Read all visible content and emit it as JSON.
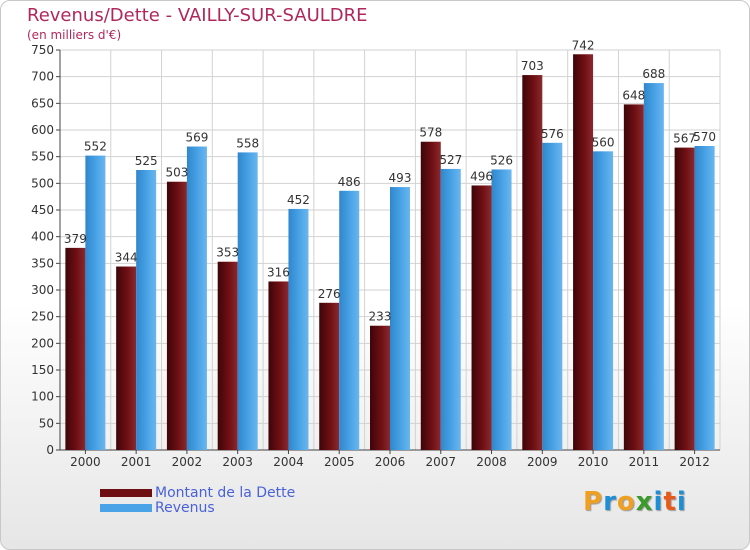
{
  "header": {
    "title": "Revenus/Dette - VAILLY-SUR-SAULDRE",
    "subtitle": "(en milliers d'€)"
  },
  "legend": {
    "items": [
      {
        "label": "Montant de la Dette",
        "color": "#6e0f14"
      },
      {
        "label": "Revenus",
        "color": "#4aa3e6"
      }
    ]
  },
  "logo": {
    "letters": [
      "P",
      "r",
      "o",
      "x",
      "i",
      "t",
      "i"
    ],
    "colors": [
      "#f0a020",
      "#1e8fd6",
      "#f0a020",
      "#3a9a2a",
      "#1e8fd6",
      "#e85a1a",
      "#1e8fd6"
    ]
  },
  "chart_data": {
    "type": "bar",
    "title": "Revenus/Dette - VAILLY-SUR-SAULDRE",
    "subtitle": "(en milliers d'€)",
    "categories": [
      "2000",
      "2001",
      "2002",
      "2003",
      "2004",
      "2005",
      "2006",
      "2007",
      "2008",
      "2009",
      "2010",
      "2011",
      "2012"
    ],
    "series": [
      {
        "name": "Montant de la Dette",
        "color": "#6e0f14",
        "values": [
          379,
          344,
          503,
          353,
          316,
          276,
          233,
          578,
          496,
          703,
          742,
          648,
          567
        ]
      },
      {
        "name": "Revenus",
        "color": "#4aa3e6",
        "values": [
          552,
          525,
          569,
          558,
          452,
          486,
          493,
          527,
          526,
          576,
          560,
          688,
          570
        ]
      }
    ],
    "ylim": [
      0,
      750
    ],
    "yticks": [
      0,
      50,
      100,
      150,
      200,
      250,
      300,
      350,
      400,
      450,
      500,
      550,
      600,
      650,
      700,
      750
    ],
    "grid": true,
    "legend_position": "bottom-left"
  }
}
